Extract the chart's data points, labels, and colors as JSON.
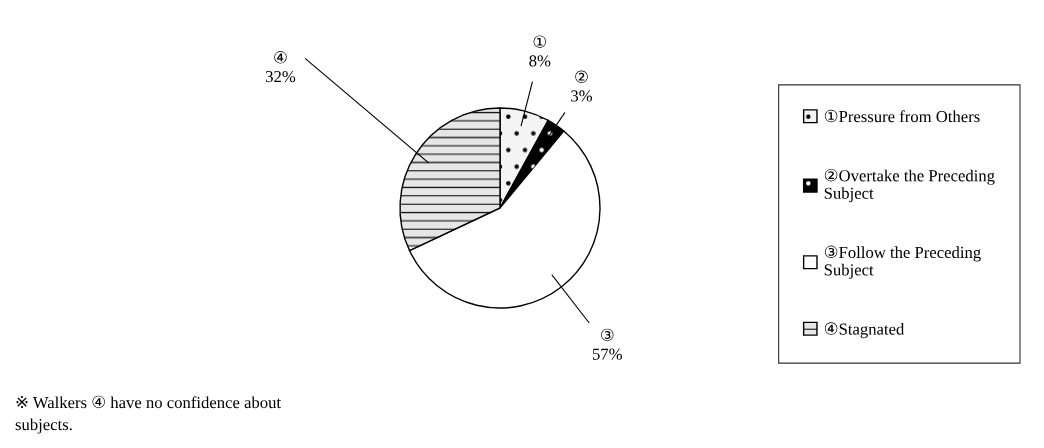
{
  "chart_data": {
    "type": "pie",
    "categories": [
      "①Pressure from Others",
      "②Overtake the Preceding\nSubject",
      "③Follow the Preceding\nSubject",
      "④Stagnated"
    ],
    "values": [
      8,
      3,
      57,
      32
    ],
    "colors": [
      "#f4f4f4",
      "#000000",
      "#ffffff",
      "#e6e6e6"
    ],
    "value_labels": [
      "①\n8%",
      "②\n3%",
      "③\n57%",
      "④\n32%"
    ],
    "legend": "right",
    "annotations": [
      "※ Walkers ④ have no confidence about\nsubjects."
    ]
  }
}
